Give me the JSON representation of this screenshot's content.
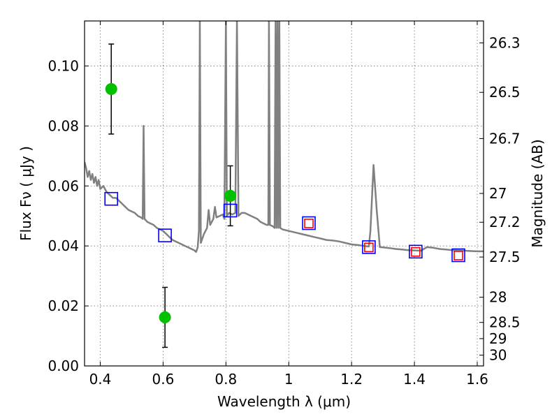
{
  "chart_data": {
    "type": "scatter",
    "xlabel": "Wavelength  λ (μm)",
    "ylabel_left": "Flux  Fν  ( μJy )",
    "ylabel_right": "Magnitude (AB)",
    "xlim": [
      0.35,
      1.62
    ],
    "ylim": [
      0.0,
      0.115
    ],
    "grid": true,
    "x_ticks": [
      0.4,
      0.6,
      0.8,
      1.0,
      1.2,
      1.4,
      1.6
    ],
    "x_tick_labels": [
      "0.4",
      "0.6",
      "0.8",
      "1",
      "1.2",
      "1.4",
      "1.6"
    ],
    "y_ticks": [
      0.0,
      0.02,
      0.04,
      0.06,
      0.08,
      0.1
    ],
    "y_tick_labels": [
      "0.00",
      "0.02",
      "0.04",
      "0.06",
      "0.08",
      "0.10"
    ],
    "right_ticks": [
      {
        "label": "26.3",
        "flux": 0.1077
      },
      {
        "label": "26.5",
        "flux": 0.0912
      },
      {
        "label": "26.7",
        "flux": 0.0758
      },
      {
        "label": "27",
        "flux": 0.0575
      },
      {
        "label": "27.2",
        "flux": 0.0479
      },
      {
        "label": "27.5",
        "flux": 0.0363
      },
      {
        "label": "28",
        "flux": 0.0229
      },
      {
        "label": "28.5",
        "flux": 0.0145
      },
      {
        "label": "29",
        "flux": 0.0091
      },
      {
        "label": "30",
        "flux": 0.0036
      }
    ],
    "series": [
      {
        "kind": "line",
        "color": "#808080",
        "points": [
          [
            0.35,
            0.068
          ],
          [
            0.355,
            0.066
          ],
          [
            0.36,
            0.063
          ],
          [
            0.365,
            0.065
          ],
          [
            0.37,
            0.062
          ],
          [
            0.375,
            0.064
          ],
          [
            0.38,
            0.061
          ],
          [
            0.385,
            0.063
          ],
          [
            0.39,
            0.06
          ],
          [
            0.395,
            0.062
          ],
          [
            0.4,
            0.059
          ],
          [
            0.41,
            0.06
          ],
          [
            0.42,
            0.058
          ],
          [
            0.43,
            0.057
          ],
          [
            0.44,
            0.056
          ],
          [
            0.45,
            0.056
          ],
          [
            0.46,
            0.055
          ],
          [
            0.47,
            0.054
          ],
          [
            0.48,
            0.053
          ],
          [
            0.49,
            0.052
          ],
          [
            0.5,
            0.0515
          ],
          [
            0.51,
            0.051
          ],
          [
            0.52,
            0.05
          ],
          [
            0.53,
            0.0495
          ],
          [
            0.535,
            0.049
          ],
          [
            0.538,
            0.08
          ],
          [
            0.541,
            0.049
          ],
          [
            0.55,
            0.048
          ],
          [
            0.56,
            0.0475
          ],
          [
            0.57,
            0.047
          ],
          [
            0.58,
            0.046
          ],
          [
            0.59,
            0.0455
          ],
          [
            0.6,
            0.045
          ],
          [
            0.61,
            0.044
          ],
          [
            0.62,
            0.043
          ],
          [
            0.63,
            0.042
          ],
          [
            0.64,
            0.0415
          ],
          [
            0.65,
            0.041
          ],
          [
            0.66,
            0.0405
          ],
          [
            0.67,
            0.04
          ],
          [
            0.68,
            0.0395
          ],
          [
            0.69,
            0.039
          ],
          [
            0.7,
            0.0385
          ],
          [
            0.705,
            0.038
          ],
          [
            0.71,
            0.0395
          ],
          [
            0.714,
            0.045
          ],
          [
            0.717,
            0.115
          ],
          [
            0.72,
            0.041
          ],
          [
            0.73,
            0.044
          ],
          [
            0.74,
            0.046
          ],
          [
            0.745,
            0.052
          ],
          [
            0.75,
            0.047
          ],
          [
            0.76,
            0.049
          ],
          [
            0.765,
            0.053
          ],
          [
            0.77,
            0.0495
          ],
          [
            0.78,
            0.05
          ],
          [
            0.79,
            0.0505
          ],
          [
            0.795,
            0.049
          ],
          [
            0.8,
            0.115
          ],
          [
            0.803,
            0.05
          ],
          [
            0.81,
            0.051
          ],
          [
            0.82,
            0.0505
          ],
          [
            0.83,
            0.051
          ],
          [
            0.835,
            0.115
          ],
          [
            0.84,
            0.05
          ],
          [
            0.85,
            0.051
          ],
          [
            0.86,
            0.051
          ],
          [
            0.87,
            0.0505
          ],
          [
            0.88,
            0.05
          ],
          [
            0.89,
            0.0495
          ],
          [
            0.9,
            0.049
          ],
          [
            0.91,
            0.048
          ],
          [
            0.92,
            0.0475
          ],
          [
            0.93,
            0.047
          ],
          [
            0.935,
            0.047
          ],
          [
            0.937,
            0.115
          ],
          [
            0.94,
            0.047
          ],
          [
            0.95,
            0.0465
          ],
          [
            0.955,
            0.046
          ],
          [
            0.958,
            0.115
          ],
          [
            0.961,
            0.046
          ],
          [
            0.964,
            0.115
          ],
          [
            0.967,
            0.046
          ],
          [
            0.97,
            0.115
          ],
          [
            0.973,
            0.046
          ],
          [
            0.98,
            0.0455
          ],
          [
            1.0,
            0.045
          ],
          [
            1.02,
            0.0445
          ],
          [
            1.04,
            0.044
          ],
          [
            1.06,
            0.0435
          ],
          [
            1.08,
            0.043
          ],
          [
            1.1,
            0.0425
          ],
          [
            1.12,
            0.042
          ],
          [
            1.14,
            0.0418
          ],
          [
            1.16,
            0.0415
          ],
          [
            1.18,
            0.041
          ],
          [
            1.2,
            0.0405
          ],
          [
            1.22,
            0.0403
          ],
          [
            1.24,
            0.04
          ],
          [
            1.255,
            0.0398
          ],
          [
            1.26,
            0.045
          ],
          [
            1.27,
            0.067
          ],
          [
            1.28,
            0.052
          ],
          [
            1.29,
            0.0396
          ],
          [
            1.3,
            0.0395
          ],
          [
            1.32,
            0.0393
          ],
          [
            1.34,
            0.039
          ],
          [
            1.36,
            0.0388
          ],
          [
            1.38,
            0.0386
          ],
          [
            1.4,
            0.0385
          ],
          [
            1.42,
            0.0384
          ],
          [
            1.44,
            0.0396
          ],
          [
            1.46,
            0.0394
          ],
          [
            1.48,
            0.039
          ],
          [
            1.5,
            0.0388
          ],
          [
            1.52,
            0.0386
          ],
          [
            1.54,
            0.0385
          ],
          [
            1.56,
            0.0384
          ],
          [
            1.58,
            0.0383
          ],
          [
            1.6,
            0.0382
          ],
          [
            1.62,
            0.0382
          ]
        ]
      },
      {
        "kind": "errorbar",
        "marker": "circle",
        "color": "#00c000",
        "points": [
          {
            "x": 0.435,
            "y": 0.0923,
            "err": 0.015
          },
          {
            "x": 0.606,
            "y": 0.0162,
            "err": 0.01
          },
          {
            "x": 0.814,
            "y": 0.0567,
            "err": 0.01
          }
        ]
      },
      {
        "kind": "scatter",
        "marker": "open-square",
        "color": "#0000ff",
        "points": [
          [
            0.435,
            0.0557
          ],
          [
            0.606,
            0.0435
          ],
          [
            0.814,
            0.0518
          ],
          [
            1.064,
            0.0476
          ],
          [
            1.255,
            0.0396
          ],
          [
            1.404,
            0.0381
          ],
          [
            1.54,
            0.0369
          ]
        ]
      },
      {
        "kind": "scatter",
        "marker": "open-square",
        "color": "#ff0000",
        "points": [
          [
            1.064,
            0.0475
          ],
          [
            1.255,
            0.0395
          ],
          [
            1.404,
            0.038
          ],
          [
            1.54,
            0.0368
          ]
        ]
      }
    ]
  }
}
